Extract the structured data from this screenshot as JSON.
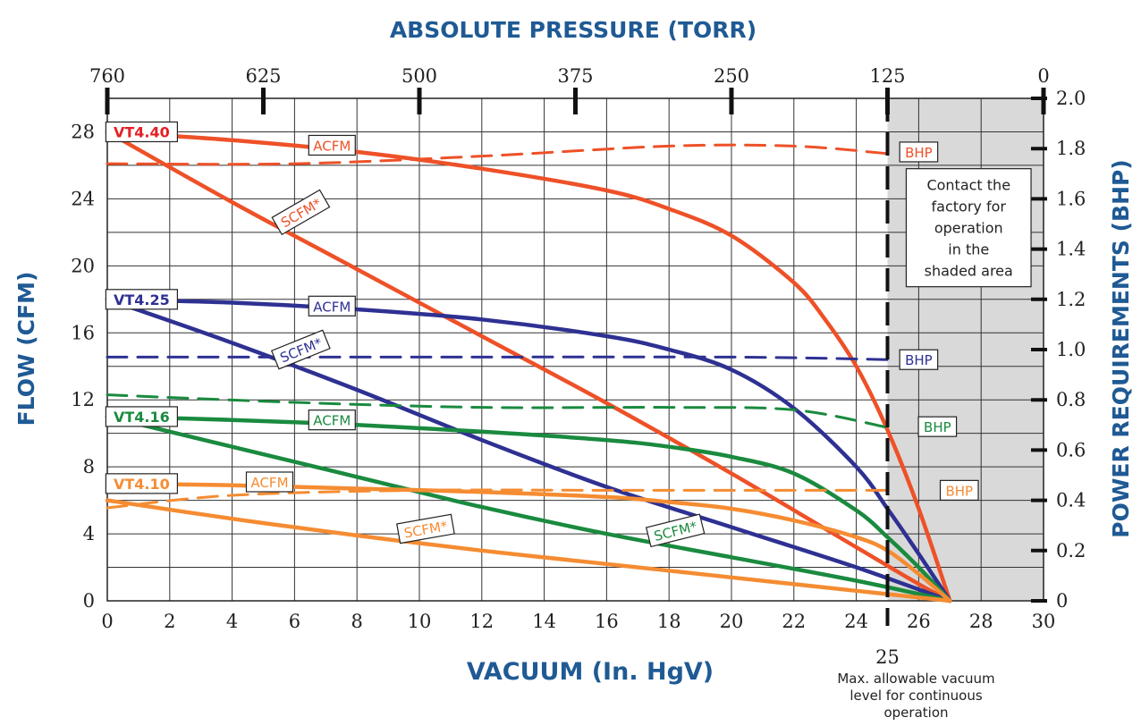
{
  "chart_data": {
    "type": "line",
    "title": "ABSOLUTE PRESSURE (TORR)",
    "xlabel": "VACUUM (In. HgV)",
    "ylabel": "FLOW (CFM)",
    "y2label": "POWER REQUIREMENTS (BHP)",
    "xlim": [
      0,
      30
    ],
    "ylim": [
      0,
      30
    ],
    "y2lim": [
      0,
      2.0
    ],
    "x_ticks": [
      "0",
      "2",
      "4",
      "6",
      "8",
      "10",
      "12",
      "14",
      "16",
      "18",
      "20",
      "22",
      "24",
      "26",
      "28",
      "30"
    ],
    "y_ticks": [
      "0",
      "4",
      "8",
      "12",
      "16",
      "20",
      "24",
      "28"
    ],
    "y2_ticks": [
      "0",
      "0.2",
      "0.4",
      "0.6",
      "0.8",
      "1.0",
      "1.2",
      "1.4",
      "1.6",
      "1.8",
      "2.0"
    ],
    "top_ticks": [
      {
        "x": 0,
        "label": "760"
      },
      {
        "x": 5,
        "label": "625"
      },
      {
        "x": 10,
        "label": "500"
      },
      {
        "x": 15,
        "label": "375"
      },
      {
        "x": 20,
        "label": "250"
      },
      {
        "x": 25,
        "label": "125"
      },
      {
        "x": 30,
        "label": "0"
      }
    ],
    "grid": true,
    "shaded_region": {
      "x_from": 25,
      "x_to": 30,
      "color": "#d9d9d9"
    },
    "max_vacuum_line": {
      "x": 25,
      "label": "25",
      "note": [
        "Max. allowable vacuum",
        "level for continuous",
        "operation"
      ]
    },
    "shaded_note": [
      "Contact the",
      "factory for",
      "operation",
      "in the",
      "shaded area"
    ],
    "colors": {
      "vt440": "#ee5128",
      "vt440_label": "#e41f25",
      "vt425": "#2e3192",
      "vt416": "#1a8a3f",
      "vt410": "#f58c32",
      "title": "#1f5a94"
    },
    "series": [
      {
        "name": "ACFM",
        "model": "VT4.40",
        "kind": "acfm",
        "color": "#ee5128",
        "axis": "left",
        "x": [
          0,
          4,
          8,
          12,
          16,
          18,
          20,
          22,
          23,
          24,
          25,
          26,
          27
        ],
        "y": [
          28,
          27.5,
          26.8,
          25.8,
          24.5,
          23.4,
          21.8,
          19.0,
          16.8,
          14.0,
          10.2,
          5.5,
          0
        ]
      },
      {
        "name": "SCFM*",
        "model": "VT4.40",
        "kind": "scfm",
        "color": "#ee5128",
        "axis": "left",
        "x": [
          0,
          4,
          8,
          12,
          16,
          20,
          24,
          26,
          27
        ],
        "y": [
          28,
          23.8,
          19.8,
          15.8,
          11.8,
          7.6,
          3.2,
          1.0,
          0
        ]
      },
      {
        "name": "BHP",
        "model": "VT4.40",
        "kind": "bhp",
        "color": "#ee5128",
        "axis": "right",
        "x": [
          0,
          6,
          12,
          18,
          22,
          25
        ],
        "y": [
          1.74,
          1.74,
          1.77,
          1.81,
          1.81,
          1.78
        ]
      },
      {
        "name": "ACFM",
        "model": "VT4.25",
        "kind": "acfm",
        "color": "#2e3192",
        "axis": "left",
        "x": [
          0,
          4,
          8,
          12,
          16,
          18,
          20,
          22,
          24,
          25,
          26,
          27
        ],
        "y": [
          18,
          17.8,
          17.4,
          16.8,
          15.8,
          15.0,
          13.8,
          11.5,
          8.0,
          5.5,
          2.8,
          0
        ]
      },
      {
        "name": "SCFM*",
        "model": "VT4.25",
        "kind": "scfm",
        "color": "#2e3192",
        "axis": "left",
        "x": [
          0,
          4,
          8,
          12,
          16,
          20,
          24,
          27
        ],
        "y": [
          18,
          15.4,
          12.6,
          9.6,
          6.8,
          4.4,
          2.0,
          0
        ]
      },
      {
        "name": "BHP",
        "model": "VT4.25",
        "kind": "bhp",
        "color": "#2e3192",
        "axis": "right",
        "x": [
          0,
          10,
          20,
          25
        ],
        "y": [
          0.97,
          0.97,
          0.97,
          0.96
        ]
      },
      {
        "name": "ACFM",
        "model": "VT4.16",
        "kind": "acfm",
        "color": "#1a8a3f",
        "axis": "left",
        "x": [
          0,
          4,
          8,
          12,
          16,
          18,
          20,
          22,
          24,
          25,
          26,
          27
        ],
        "y": [
          11,
          10.8,
          10.5,
          10.1,
          9.6,
          9.2,
          8.6,
          7.6,
          5.4,
          3.8,
          2.0,
          0
        ]
      },
      {
        "name": "SCFM*",
        "model": "VT4.16",
        "kind": "scfm",
        "color": "#1a8a3f",
        "axis": "left",
        "x": [
          0,
          4,
          8,
          12,
          16,
          20,
          24,
          27
        ],
        "y": [
          11,
          9.2,
          7.4,
          5.6,
          4.0,
          2.6,
          1.2,
          0
        ]
      },
      {
        "name": "BHP",
        "model": "VT4.16",
        "kind": "bhp",
        "color": "#1a8a3f",
        "axis": "right",
        "x": [
          0,
          6,
          12,
          18,
          22,
          25
        ],
        "y": [
          0.82,
          0.79,
          0.77,
          0.77,
          0.76,
          0.69
        ]
      },
      {
        "name": "ACFM",
        "model": "VT4.10",
        "kind": "acfm",
        "color": "#f58c32",
        "axis": "left",
        "x": [
          0,
          4,
          8,
          12,
          16,
          18,
          20,
          22,
          24,
          25,
          26,
          27
        ],
        "y": [
          7,
          6.9,
          6.7,
          6.5,
          6.2,
          5.9,
          5.5,
          4.8,
          3.8,
          3.0,
          1.6,
          0
        ]
      },
      {
        "name": "SCFM*",
        "model": "VT4.10",
        "kind": "scfm",
        "color": "#f58c32",
        "axis": "left",
        "x": [
          0,
          4,
          8,
          12,
          16,
          20,
          24,
          27
        ],
        "y": [
          6.0,
          4.9,
          3.9,
          3.0,
          2.2,
          1.4,
          0.6,
          0
        ]
      },
      {
        "name": "BHP",
        "model": "VT4.10",
        "kind": "bhp",
        "color": "#f58c32",
        "axis": "right",
        "x": [
          0,
          4,
          10,
          16,
          22,
          25
        ],
        "y": [
          0.37,
          0.42,
          0.44,
          0.44,
          0.44,
          0.44
        ]
      }
    ],
    "model_labels": [
      {
        "text": "VT4.40",
        "color": "#e41f25",
        "at": [
          1.1,
          28
        ]
      },
      {
        "text": "VT4.25",
        "color": "#2e3192",
        "at": [
          1.1,
          18
        ]
      },
      {
        "text": "VT4.16",
        "color": "#1a8a3f",
        "at": [
          1.1,
          11
        ]
      },
      {
        "text": "VT4.10",
        "color": "#f58c32",
        "at": [
          1.1,
          7
        ]
      }
    ],
    "curve_labels": [
      {
        "text": "ACFM",
        "color": "#ee5128",
        "at": [
          7.2,
          27.2
        ],
        "rot": 0
      },
      {
        "text": "SCFM*",
        "color": "#ee5128",
        "at": [
          6.2,
          23.2
        ],
        "rot": 30
      },
      {
        "text": "BHP",
        "color": "#ee5128",
        "at": [
          26.0,
          26.8
        ],
        "rot": 0
      },
      {
        "text": "ACFM",
        "color": "#2e3192",
        "at": [
          7.2,
          17.6
        ],
        "rot": 0
      },
      {
        "text": "SCFM*",
        "color": "#2e3192",
        "at": [
          6.2,
          15.0
        ],
        "rot": 22
      },
      {
        "text": "BHP",
        "color": "#2e3192",
        "at": [
          26.0,
          14.4
        ],
        "rot": 0
      },
      {
        "text": "ACFM",
        "color": "#1a8a3f",
        "at": [
          7.2,
          10.8
        ],
        "rot": 0
      },
      {
        "text": "SCFM*",
        "color": "#1a8a3f",
        "at": [
          18.2,
          4.2
        ],
        "rot": 14
      },
      {
        "text": "BHP",
        "color": "#1a8a3f",
        "at": [
          26.6,
          10.4
        ],
        "rot": 0
      },
      {
        "text": "ACFM",
        "color": "#f58c32",
        "at": [
          5.2,
          7.1
        ],
        "rot": 0
      },
      {
        "text": "SCFM*",
        "color": "#f58c32",
        "at": [
          10.2,
          4.3
        ],
        "rot": 10
      },
      {
        "text": "BHP",
        "color": "#f58c32",
        "at": [
          27.3,
          6.6
        ],
        "rot": 0
      }
    ]
  }
}
